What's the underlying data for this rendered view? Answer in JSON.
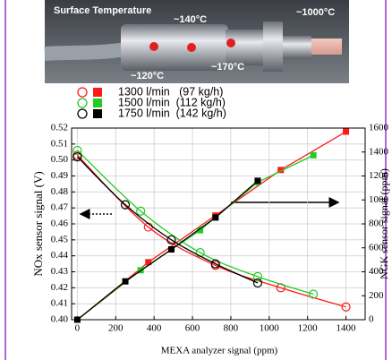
{
  "chart_data": {
    "type": "line",
    "annotations": [
      "Surface Temperature",
      "~140°C",
      "~1000°C",
      "~120°C",
      "~170°C"
    ],
    "xlabel": "MEXA analyzer signal (ppm)",
    "ylabel": "NOx sensor signal (V)",
    "y2label": "NGK sensor signal (ppm)",
    "xlim": [
      -30,
      1500
    ],
    "xticks": [
      0,
      200,
      400,
      600,
      800,
      1000,
      1200,
      1400
    ],
    "ylim": [
      0.4,
      0.52
    ],
    "yticks": [
      {
        "value": 0.4,
        "label": "0.40"
      },
      0.41,
      0.42,
      0.43,
      0.44,
      0.45,
      0.46,
      0.47,
      0.48,
      0.49,
      {
        "value": 0.5,
        "label": "0.50"
      },
      0.51,
      0.52
    ],
    "y2lim": [
      0,
      1600
    ],
    "y2ticks": [
      0,
      200,
      400,
      600,
      800,
      1000,
      1200,
      1400,
      1600
    ],
    "grid": true,
    "series": [
      {
        "name": "1300 l/min   (97 kg/h)",
        "color": "#ff1a1a",
        "x": [
          0,
          370,
          720,
          1060,
          1400
        ],
        "values": [
          0.503,
          0.458,
          0.434,
          0.42,
          0.408
        ],
        "y2_values": [
          0,
          480,
          870,
          1250,
          1570
        ]
      },
      {
        "name": "1500 l/min  (112 kg/h)",
        "color": "#22cc22",
        "x": [
          0,
          330,
          640,
          940,
          1230
        ],
        "values": [
          0.506,
          0.468,
          0.442,
          0.427,
          0.416
        ],
        "y2_values": [
          0,
          413,
          747,
          1147,
          1373
        ]
      },
      {
        "name": "1750 l/min  (142 kg/h)",
        "color": "#000000",
        "x": [
          0,
          250,
          490,
          720,
          940
        ],
        "values": [
          0.502,
          0.472,
          0.45,
          0.435,
          0.423
        ],
        "y2_values": [
          0,
          320,
          587,
          853,
          1160
        ]
      }
    ]
  }
}
